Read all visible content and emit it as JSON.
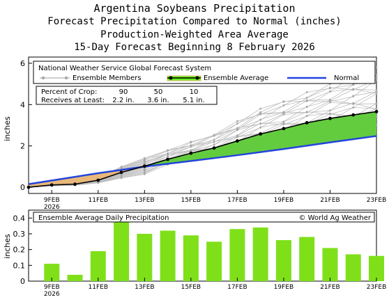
{
  "titles": {
    "line1": "Argentina Soybeans Precipitation",
    "line2": "Forecast Precipitation Compared to Normal (inches)",
    "line3": "Production-Weighted Area Average",
    "line4": "15-Day Forecast Beginning 8 February 2026"
  },
  "colors": {
    "ensemble_member": "#bdbdbd",
    "ensemble_average": "#000000",
    "normal": "#2244dd",
    "above_fill": "#63cc3e",
    "below_fill": "#e8b87a",
    "bar": "#7fe01a",
    "spread": "#66ee22"
  },
  "chart_data": [
    {
      "type": "line",
      "title": "National Weather Service Global Forecast System",
      "ylabel": "inches",
      "ylim": [
        -0.3,
        6.3
      ],
      "xlim": [
        0,
        15
      ],
      "y_ticks": [
        "0",
        "2",
        "4",
        "6"
      ],
      "x_ticks": [
        "9FEB",
        "11FEB",
        "13FEB",
        "15FEB",
        "17FEB",
        "19FEB",
        "21FEB",
        "23FEB"
      ],
      "x_tick_sub": "2026",
      "grid": false,
      "legend": {
        "position": "top",
        "members_label": "Ensemble Members",
        "average_label": "Ensemble Average",
        "normal_label": "Normal"
      },
      "crop_table": {
        "row1_label": "Percent of Crop:",
        "row2_label": "Receives at Least:",
        "percents": [
          "90",
          "50",
          "10"
        ],
        "amounts": [
          "2.2 in.",
          "3.6 in.",
          "5.1 in."
        ]
      },
      "series": [
        {
          "name": "Ensemble Average",
          "x": [
            0,
            1,
            2,
            3,
            4,
            5,
            6,
            7,
            8,
            9,
            10,
            11,
            12,
            13,
            14,
            15
          ],
          "y": [
            0,
            0.11,
            0.15,
            0.34,
            0.72,
            1.02,
            1.35,
            1.65,
            1.9,
            2.24,
            2.58,
            2.84,
            3.12,
            3.33,
            3.5,
            3.66
          ]
        },
        {
          "name": "Normal",
          "x": [
            0,
            3,
            5,
            7,
            9,
            11,
            13,
            15
          ],
          "y": [
            0.15,
            0.68,
            1.0,
            1.27,
            1.55,
            1.85,
            2.17,
            2.48
          ]
        }
      ],
      "spread_range": {
        "x": [
          6,
          7,
          8,
          9,
          10,
          11,
          12,
          13,
          14,
          15
        ],
        "low": [
          1.1,
          1.3,
          1.5,
          1.8,
          2.1,
          2.3,
          2.6,
          2.8,
          2.9,
          3.0
        ],
        "high": [
          1.8,
          2.2,
          2.6,
          3.2,
          3.8,
          4.2,
          4.6,
          5.0,
          5.4,
          5.8
        ]
      }
    },
    {
      "type": "bar",
      "title": "Ensemble Average Daily Precipitation",
      "copyright": "© World Ag Weather",
      "ylabel": "inches",
      "ylim": [
        0,
        0.45
      ],
      "y_ticks": [
        "0",
        "0.1",
        "0.2",
        "0.3",
        "0.4"
      ],
      "x_ticks": [
        "9FEB",
        "11FEB",
        "13FEB",
        "15FEB",
        "17FEB",
        "19FEB",
        "21FEB",
        "23FEB"
      ],
      "x_tick_sub": "2026",
      "values": [
        0.11,
        0.04,
        0.19,
        0.38,
        0.3,
        0.32,
        0.29,
        0.25,
        0.33,
        0.34,
        0.26,
        0.28,
        0.21,
        0.17,
        0.16
      ]
    }
  ]
}
